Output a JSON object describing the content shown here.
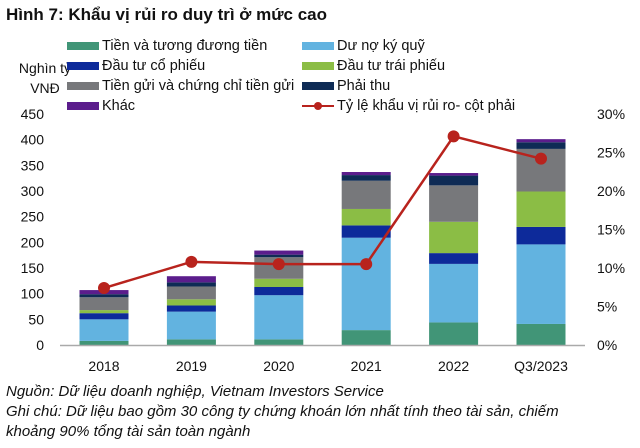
{
  "title": "Hình 7: Khẩu vị rủi ro duy trì ở mức cao",
  "footer": {
    "source": "Nguồn: Dữ liệu doanh nghiệp, Vietnam Investors Service",
    "note1": "Ghi chú: Dữ liệu bao gồm 30 công ty chứng khoán lớn nhất tính theo tài sản, chiếm",
    "note2": "khoảng 90% tổng tài sản toàn ngành"
  },
  "chart_data": {
    "type": "bar",
    "stacked": true,
    "title": "Hình 7: Khẩu vị rủi ro duy trì ở mức cao",
    "ylabel_line1": "Nghìn tỷ",
    "ylabel_line2": "VNĐ",
    "categories": [
      "2018",
      "2019",
      "2020",
      "2021",
      "2022",
      "Q3/2023"
    ],
    "ylim": [
      0,
      450
    ],
    "yticks": [
      "0",
      "50",
      "100",
      "150",
      "200",
      "250",
      "300",
      "350",
      "400",
      "450"
    ],
    "y2lim": [
      0,
      30
    ],
    "y2ticks": [
      "0%",
      "5%",
      "10%",
      "15%",
      "20%",
      "25%",
      "30%"
    ],
    "grid": false,
    "legend_position": "top",
    "series": [
      {
        "name": "Tiền và tương đương tiền",
        "color": "#419577",
        "values": [
          8,
          11,
          11,
          29,
          44,
          41
        ]
      },
      {
        "name": "Dư nợ ký quỹ",
        "color": "#62b3e0",
        "values": [
          42,
          54,
          86,
          180,
          114,
          155
        ]
      },
      {
        "name": "Đầu tư cổ phiếu",
        "color": "#0d2a9a",
        "values": [
          12,
          12,
          16,
          24,
          21,
          34
        ]
      },
      {
        "name": "Đầu tư trái phiếu",
        "color": "#8bbd45",
        "values": [
          6,
          12,
          16,
          32,
          61,
          69
        ]
      },
      {
        "name": "Tiền gửi và chứng chỉ tiền gửi",
        "color": "#77787b",
        "values": [
          25,
          25,
          42,
          55,
          71,
          83
        ]
      },
      {
        "name": "Phải thu",
        "color": "#0e2b55",
        "values": [
          6,
          8,
          5,
          11,
          19,
          13
        ]
      },
      {
        "name": "Khác",
        "color": "#5b1d8c",
        "values": [
          8,
          12,
          8,
          6,
          5,
          6
        ]
      }
    ],
    "line_series": {
      "name": "Tỷ lệ khẩu vị rủi ro- cột phải",
      "color": "#b8231d",
      "axis": "right",
      "values": [
        7.4,
        10.8,
        10.5,
        10.5,
        27.1,
        24.2
      ]
    }
  }
}
